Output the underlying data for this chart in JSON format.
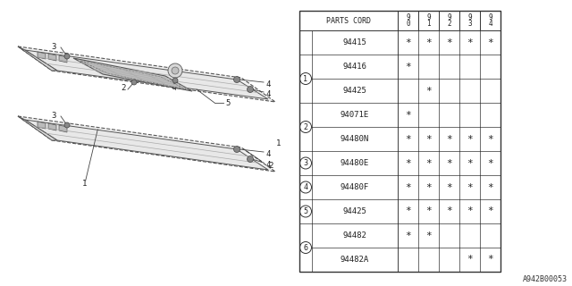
{
  "diagram_code": "A942B00053",
  "bg_color": "#ffffff",
  "table": {
    "header": [
      "PARTS CORD",
      "9\n0",
      "9\n1",
      "9\n2",
      "9\n3",
      "9\n4"
    ],
    "rows": [
      {
        "circle": "",
        "part": "94415",
        "cols": [
          "*",
          "*",
          "*",
          "*",
          "*"
        ]
      },
      {
        "circle": "1",
        "part": "94416",
        "cols": [
          "*",
          "",
          "",
          "",
          ""
        ]
      },
      {
        "circle": "",
        "part": "94425",
        "cols": [
          "",
          "*",
          "",
          "",
          ""
        ]
      },
      {
        "circle": "",
        "part": "94071E",
        "cols": [
          "*",
          "",
          "",
          "",
          ""
        ]
      },
      {
        "circle": "2",
        "part": "94480N",
        "cols": [
          "*",
          "*",
          "*",
          "*",
          "*"
        ]
      },
      {
        "circle": "3",
        "part": "94480E",
        "cols": [
          "*",
          "*",
          "*",
          "*",
          "*"
        ]
      },
      {
        "circle": "4",
        "part": "94480F",
        "cols": [
          "*",
          "*",
          "*",
          "*",
          "*"
        ]
      },
      {
        "circle": "5",
        "part": "94425",
        "cols": [
          "*",
          "*",
          "*",
          "*",
          "*"
        ]
      },
      {
        "circle": "",
        "part": "94482",
        "cols": [
          "*",
          "*",
          "",
          "",
          ""
        ]
      },
      {
        "circle": "6",
        "part": "94482A",
        "cols": [
          "",
          "",
          "",
          "*",
          "*"
        ]
      }
    ],
    "groups": [
      {
        "circle": "1",
        "rows": [
          1,
          2
        ]
      },
      {
        "circle": "2",
        "rows": [
          3,
          4
        ]
      },
      {
        "circle": "6",
        "rows": [
          8,
          9
        ]
      }
    ]
  }
}
